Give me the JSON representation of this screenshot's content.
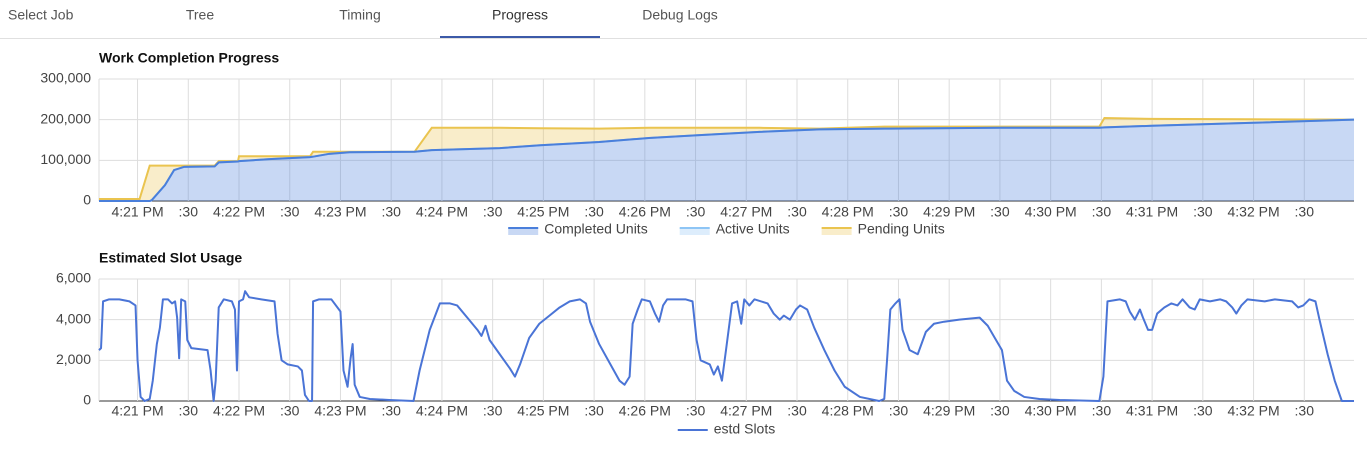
{
  "tabs": [
    "Select Job",
    "Tree",
    "Timing",
    "Progress",
    "Debug Logs"
  ],
  "active_tab": 3,
  "chart_data": [
    {
      "type": "area",
      "stacked": true,
      "title": "Work Completion Progress",
      "grid": true,
      "legend": "bottom",
      "xlim": [
        20.62,
        32.99
      ],
      "ylim": [
        0,
        300000
      ],
      "xticks": [
        {
          "value": 21,
          "label": "4:21 PM"
        },
        {
          "value": 21.5,
          "label": ":30"
        },
        {
          "value": 22,
          "label": "4:22 PM"
        },
        {
          "value": 22.5,
          "label": ":30"
        },
        {
          "value": 23,
          "label": "4:23 PM"
        },
        {
          "value": 23.5,
          "label": ":30"
        },
        {
          "value": 24,
          "label": "4:24 PM"
        },
        {
          "value": 24.5,
          "label": ":30"
        },
        {
          "value": 25,
          "label": "4:25 PM"
        },
        {
          "value": 25.5,
          "label": ":30"
        },
        {
          "value": 26,
          "label": "4:26 PM"
        },
        {
          "value": 26.5,
          "label": ":30"
        },
        {
          "value": 27,
          "label": "4:27 PM"
        },
        {
          "value": 27.5,
          "label": ":30"
        },
        {
          "value": 28,
          "label": "4:28 PM"
        },
        {
          "value": 28.5,
          "label": ":30"
        },
        {
          "value": 29,
          "label": "4:29 PM"
        },
        {
          "value": 29.5,
          "label": ":30"
        },
        {
          "value": 30,
          "label": "4:30 PM"
        },
        {
          "value": 30.5,
          "label": ":30"
        },
        {
          "value": 31,
          "label": "4:31 PM"
        },
        {
          "value": 31.5,
          "label": ":30"
        },
        {
          "value": 32,
          "label": "4:32 PM"
        },
        {
          "value": 32.5,
          "label": ":30"
        }
      ],
      "yticks": [
        0,
        {
          "value": 100000,
          "label": "100,000"
        },
        {
          "value": 200000,
          "label": "200,000"
        },
        {
          "value": 300000,
          "label": "300,000"
        }
      ],
      "x": [
        20.62,
        21.02,
        21.12,
        21.14,
        21.27,
        21.36,
        21.46,
        21.76,
        21.8,
        21.99,
        22,
        22.3,
        22.7,
        22.73,
        22.89,
        23.09,
        23.73,
        23.9,
        24.57,
        24.97,
        25.55,
        26.04,
        26.54,
        27.13,
        27.72,
        28.36,
        29.5,
        30.48,
        30.53,
        31,
        31.96,
        32.99
      ],
      "series": [
        {
          "name": "Completed Units",
          "color": "#4a7fdb",
          "values": [
            0,
            0,
            0,
            2000,
            39000,
            76000,
            84000,
            85000,
            95000,
            97000,
            98000,
            103000,
            108000,
            109000,
            116000,
            120000,
            121000,
            125000,
            130000,
            137000,
            145000,
            155000,
            162000,
            170000,
            176000,
            178000,
            180000,
            180000,
            181000,
            185000,
            192000,
            200000
          ]
        },
        {
          "name": "Active Units",
          "color": "#8ec5f5",
          "values": [
            0,
            0,
            0,
            0,
            0,
            0,
            0,
            0,
            0,
            0,
            0,
            0,
            0,
            0,
            0,
            0,
            0,
            0,
            0,
            0,
            0,
            0,
            0,
            0,
            0,
            0,
            0,
            0,
            0,
            0,
            0,
            0
          ]
        },
        {
          "name": "Pending Units",
          "color": "#eac44f",
          "values": [
            5000,
            5000,
            87000,
            85000,
            48000,
            11000,
            3000,
            2000,
            3000,
            1000,
            12000,
            7000,
            2000,
            12000,
            5000,
            1000,
            0,
            55000,
            50000,
            42000,
            33000,
            25000,
            18000,
            10000,
            2000,
            5000,
            3000,
            3000,
            23000,
            17000,
            9000,
            0
          ]
        }
      ]
    },
    {
      "type": "line",
      "title": "Estimated Slot Usage",
      "grid": true,
      "legend": "bottom",
      "xlim": [
        20.62,
        32.99
      ],
      "ylim": [
        0,
        6000
      ],
      "xticks": [
        {
          "value": 21,
          "label": "4:21 PM"
        },
        {
          "value": 21.5,
          "label": ":30"
        },
        {
          "value": 22,
          "label": "4:22 PM"
        },
        {
          "value": 22.5,
          "label": ":30"
        },
        {
          "value": 23,
          "label": "4:23 PM"
        },
        {
          "value": 23.5,
          "label": ":30"
        },
        {
          "value": 24,
          "label": "4:24 PM"
        },
        {
          "value": 24.5,
          "label": ":30"
        },
        {
          "value": 25,
          "label": "4:25 PM"
        },
        {
          "value": 25.5,
          "label": ":30"
        },
        {
          "value": 26,
          "label": "4:26 PM"
        },
        {
          "value": 26.5,
          "label": ":30"
        },
        {
          "value": 27,
          "label": "4:27 PM"
        },
        {
          "value": 27.5,
          "label": ":30"
        },
        {
          "value": 28,
          "label": "4:28 PM"
        },
        {
          "value": 28.5,
          "label": ":30"
        },
        {
          "value": 29,
          "label": "4:29 PM"
        },
        {
          "value": 29.5,
          "label": ":30"
        },
        {
          "value": 30,
          "label": "4:30 PM"
        },
        {
          "value": 30.5,
          "label": ":30"
        },
        {
          "value": 31,
          "label": "4:31 PM"
        },
        {
          "value": 31.5,
          "label": ":30"
        },
        {
          "value": 32,
          "label": "4:32 PM"
        },
        {
          "value": 32.5,
          "label": ":30"
        }
      ],
      "yticks": [
        0,
        {
          "value": 2000,
          "label": "2,000"
        },
        {
          "value": 4000,
          "label": "4,000"
        },
        {
          "value": 6000,
          "label": "6,000"
        }
      ],
      "x": [
        20.62,
        20.64,
        20.66,
        20.72,
        20.82,
        20.92,
        20.98,
        21,
        21.03,
        21.07,
        21.12,
        21.15,
        21.19,
        21.22,
        21.25,
        21.3,
        21.34,
        21.37,
        21.39,
        21.41,
        21.43,
        21.47,
        21.49,
        21.53,
        21.69,
        21.72,
        21.75,
        21.77,
        21.8,
        21.85,
        21.93,
        21.96,
        21.98,
        22,
        22.04,
        22.06,
        22.1,
        22.22,
        22.35,
        22.38,
        22.42,
        22.48,
        22.58,
        22.62,
        22.65,
        22.69,
        22.72,
        22.73,
        22.79,
        22.91,
        23,
        23.03,
        23.07,
        23.1,
        23.12,
        23.14,
        23.19,
        23.29,
        23.48,
        23.72,
        23.78,
        23.88,
        23.98,
        24.08,
        24.15,
        24.25,
        24.35,
        24.39,
        24.43,
        24.47,
        24.57,
        24.67,
        24.72,
        24.77,
        24.86,
        24.96,
        25.06,
        25.16,
        25.26,
        25.36,
        25.42,
        25.46,
        25.55,
        25.65,
        25.75,
        25.8,
        25.85,
        25.88,
        25.93,
        25.97,
        26.05,
        26.1,
        26.14,
        26.18,
        26.22,
        26.4,
        26.47,
        26.51,
        26.55,
        26.64,
        26.68,
        26.72,
        26.76,
        26.8,
        26.86,
        26.91,
        26.95,
        26.98,
        27.03,
        27.08,
        27.21,
        27.27,
        27.33,
        27.37,
        27.43,
        27.49,
        27.53,
        27.6,
        27.67,
        27.77,
        27.87,
        27.97,
        28.12,
        28.31,
        28.36,
        28.39,
        28.42,
        28.47,
        28.51,
        28.54,
        28.61,
        28.69,
        28.77,
        28.85,
        28.95,
        29.1,
        29.3,
        29.38,
        29.45,
        29.52,
        29.57,
        29.64,
        29.74,
        29.89,
        30.09,
        30.48,
        30.52,
        30.56,
        30.68,
        30.74,
        30.78,
        30.83,
        30.88,
        30.91,
        30.96,
        31,
        31.05,
        31.12,
        31.19,
        31.25,
        31.3,
        31.37,
        31.42,
        31.47,
        31.57,
        31.67,
        31.73,
        31.79,
        31.83,
        31.88,
        31.94,
        32.11,
        32.21,
        32.38,
        32.44,
        32.49,
        32.55,
        32.61,
        32.65,
        32.73,
        32.8,
        32.87,
        32.99
      ],
      "series": [
        {
          "name": "estd Slots",
          "color": "#4a74d6",
          "values": [
            2500,
            2600,
            4900,
            5000,
            5000,
            4900,
            4700,
            2000,
            200,
            0,
            100,
            1000,
            2800,
            3600,
            5000,
            5000,
            4800,
            4900,
            4100,
            2100,
            5000,
            4900,
            3000,
            2600,
            2500,
            1500,
            0,
            1000,
            4600,
            5000,
            4900,
            4500,
            1500,
            4900,
            5000,
            5400,
            5100,
            5000,
            4900,
            3300,
            2000,
            1800,
            1700,
            1500,
            300,
            0,
            0,
            4900,
            5000,
            5000,
            4400,
            1500,
            700,
            2100,
            2800,
            800,
            200,
            100,
            50,
            0,
            1500,
            3500,
            4800,
            4800,
            4700,
            4100,
            3500,
            3200,
            3700,
            3000,
            2300,
            1600,
            1200,
            1800,
            3100,
            3800,
            4200,
            4600,
            4900,
            5000,
            4800,
            3900,
            2800,
            1900,
            1000,
            800,
            1200,
            3800,
            4500,
            5000,
            4900,
            4300,
            3900,
            4700,
            5000,
            5000,
            4900,
            3000,
            2000,
            1800,
            1300,
            1700,
            1000,
            2500,
            4800,
            4900,
            3800,
            5000,
            4700,
            5000,
            4800,
            4300,
            4000,
            4200,
            4000,
            4500,
            4700,
            4500,
            3600,
            2500,
            1500,
            700,
            200,
            0,
            100,
            2200,
            4500,
            4800,
            5000,
            3500,
            2500,
            2300,
            3400,
            3800,
            3900,
            4000,
            4100,
            3700,
            3100,
            2500,
            1000,
            500,
            200,
            100,
            50,
            0,
            1200,
            4900,
            5000,
            4900,
            4400,
            4000,
            4500,
            4100,
            3500,
            3500,
            4300,
            4600,
            4800,
            4700,
            5000,
            4600,
            4500,
            5000,
            4900,
            5000,
            4900,
            4600,
            4300,
            4700,
            5000,
            4900,
            5000,
            4900,
            4600,
            4700,
            5000,
            4900,
            4000,
            2300,
            1000,
            0,
            0
          ]
        }
      ]
    }
  ]
}
